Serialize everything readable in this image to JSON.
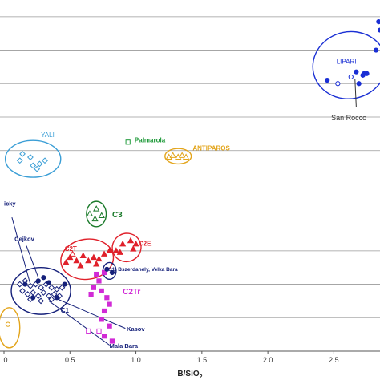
{
  "chart_data": {
    "type": "scatter",
    "title": "",
    "xlabel": "B/SiO",
    "xlabel_sub": "2",
    "ylabel": "",
    "xlim": [
      0,
      2.85
    ],
    "ylim": [
      0,
      1.05
    ],
    "grid": "horizontal",
    "x_ticks": [
      {
        "value": 0,
        "label": "0"
      },
      {
        "value": 0.5,
        "label": "0.5"
      },
      {
        "value": 1.0,
        "label": "1.0"
      },
      {
        "value": 1.5,
        "label": "1.5"
      },
      {
        "value": 2.0,
        "label": "2.0"
      },
      {
        "value": 2.5,
        "label": "2.5"
      }
    ],
    "y_grid": [
      0.1,
      0.2,
      0.3,
      0.5,
      0.6,
      0.7,
      0.8,
      0.9,
      1.0
    ],
    "groups": [
      {
        "label": "LIPARI",
        "color": "#1a2fd4",
        "label_at": [
          2.52,
          0.86
        ],
        "ellipse": {
          "cx": 2.62,
          "cy": 0.855,
          "rx": 0.28,
          "ry": 0.1,
          "rotate": -12
        },
        "points": [
          {
            "x": 2.84,
            "y": 0.985,
            "m": "circle",
            "f": true
          },
          {
            "x": 2.85,
            "y": 0.96,
            "m": "circle",
            "f": true
          },
          {
            "x": 2.82,
            "y": 0.9,
            "m": "circle",
            "f": true
          },
          {
            "x": 2.73,
            "y": 0.83,
            "m": "circle",
            "f": true
          },
          {
            "x": 2.75,
            "y": 0.83,
            "m": "circle",
            "f": true
          },
          {
            "x": 2.67,
            "y": 0.835,
            "m": "circle",
            "f": true
          },
          {
            "x": 2.69,
            "y": 0.8,
            "m": "circle",
            "f": true
          },
          {
            "x": 2.63,
            "y": 0.82,
            "m": "circle",
            "f": false
          },
          {
            "x": 2.53,
            "y": 0.8,
            "m": "circle",
            "f": false
          },
          {
            "x": 2.45,
            "y": 0.81,
            "m": "circle",
            "f": true
          },
          {
            "x": 2.72,
            "y": 0.825,
            "m": "circle",
            "f": true
          }
        ]
      },
      {
        "label": "YALI",
        "color": "#3a9ed6",
        "label_at": [
          0.28,
          0.64
        ],
        "ellipse": {
          "cx": 0.22,
          "cy": 0.575,
          "rx": 0.21,
          "ry": 0.055,
          "rotate": 0
        },
        "points": [
          {
            "x": 0.14,
            "y": 0.59,
            "m": "diamond",
            "f": false
          },
          {
            "x": 0.2,
            "y": 0.58,
            "m": "diamond",
            "f": false
          },
          {
            "x": 0.22,
            "y": 0.555,
            "m": "diamond",
            "f": false
          },
          {
            "x": 0.27,
            "y": 0.56,
            "m": "diamond",
            "f": false
          },
          {
            "x": 0.31,
            "y": 0.57,
            "m": "diamond",
            "f": false
          },
          {
            "x": 0.12,
            "y": 0.57,
            "m": "diamond",
            "f": false
          },
          {
            "x": 0.25,
            "y": 0.545,
            "m": "diamond",
            "f": false
          }
        ]
      },
      {
        "label": "Palmarola",
        "color": "#1f9a3a",
        "label_at": [
          0.99,
          0.625
        ],
        "points": [
          {
            "x": 0.94,
            "y": 0.625,
            "m": "square",
            "f": false
          }
        ]
      },
      {
        "label": "ANTIPAROS",
        "color": "#e3a51c",
        "label_at": [
          1.43,
          0.6
        ],
        "ellipse": {
          "cx": 1.32,
          "cy": 0.583,
          "rx": 0.1,
          "ry": 0.023,
          "rotate": 0
        },
        "points": [
          {
            "x": 1.25,
            "y": 0.58,
            "m": "triangle",
            "f": false
          },
          {
            "x": 1.28,
            "y": 0.585,
            "m": "triangle",
            "f": false
          },
          {
            "x": 1.32,
            "y": 0.58,
            "m": "triangle",
            "f": false
          },
          {
            "x": 1.35,
            "y": 0.585,
            "m": "triangle",
            "f": false
          },
          {
            "x": 1.38,
            "y": 0.58,
            "m": "triangle",
            "f": false
          }
        ]
      },
      {
        "label": "C3",
        "color": "#1a7a2a",
        "label_at": [
          0.82,
          0.4
        ],
        "ellipse": {
          "cx": 0.7,
          "cy": 0.41,
          "rx": 0.075,
          "ry": 0.038,
          "rotate": 0
        },
        "points": [
          {
            "x": 0.65,
            "y": 0.41,
            "m": "triangle",
            "f": false
          },
          {
            "x": 0.7,
            "y": 0.425,
            "m": "triangle",
            "f": false
          },
          {
            "x": 0.74,
            "y": 0.405,
            "m": "triangle",
            "f": false
          },
          {
            "x": 0.69,
            "y": 0.395,
            "m": "triangle",
            "f": false
          }
        ]
      },
      {
        "label": "C2E",
        "color": "#e0202a",
        "label_at": [
          1.02,
          0.315
        ],
        "ellipse": {
          "cx": 0.93,
          "cy": 0.31,
          "rx": 0.11,
          "ry": 0.042,
          "rotate": -28
        },
        "points": [
          {
            "x": 0.85,
            "y": 0.3,
            "m": "triangle",
            "f": true
          },
          {
            "x": 0.9,
            "y": 0.32,
            "m": "triangle",
            "f": true
          },
          {
            "x": 0.96,
            "y": 0.33,
            "m": "triangle",
            "f": true
          },
          {
            "x": 1.0,
            "y": 0.32,
            "m": "triangle",
            "f": true
          },
          {
            "x": 0.88,
            "y": 0.295,
            "m": "triangle",
            "f": true
          },
          {
            "x": 0.98,
            "y": 0.305,
            "m": "triangle",
            "f": true
          }
        ]
      },
      {
        "label": "C2T",
        "color": "#e0202a",
        "label_at": [
          0.46,
          0.3
        ],
        "ellipse": {
          "cx": 0.63,
          "cy": 0.275,
          "rx": 0.2,
          "ry": 0.06,
          "rotate": -8
        },
        "points": [
          {
            "x": 0.5,
            "y": 0.28,
            "m": "triangle",
            "f": true
          },
          {
            "x": 0.55,
            "y": 0.27,
            "m": "triangle",
            "f": true
          },
          {
            "x": 0.6,
            "y": 0.285,
            "m": "triangle",
            "f": true
          },
          {
            "x": 0.64,
            "y": 0.27,
            "m": "triangle",
            "f": true
          },
          {
            "x": 0.68,
            "y": 0.28,
            "m": "triangle",
            "f": true
          },
          {
            "x": 0.72,
            "y": 0.275,
            "m": "triangle",
            "f": true
          },
          {
            "x": 0.76,
            "y": 0.29,
            "m": "triangle",
            "f": true
          },
          {
            "x": 0.58,
            "y": 0.255,
            "m": "triangle",
            "f": true
          },
          {
            "x": 0.7,
            "y": 0.26,
            "m": "triangle",
            "f": true
          },
          {
            "x": 0.47,
            "y": 0.265,
            "m": "triangle",
            "f": true
          },
          {
            "x": 0.8,
            "y": 0.3,
            "m": "triangle",
            "f": true
          },
          {
            "x": 0.52,
            "y": 0.29,
            "m": "triangle",
            "f": false
          }
        ]
      },
      {
        "label": "C2Tr",
        "color": "#d12ad6",
        "label_at": [
          0.9,
          0.17
        ],
        "points": [
          {
            "x": 0.7,
            "y": 0.23,
            "m": "square",
            "f": true
          },
          {
            "x": 0.76,
            "y": 0.235,
            "m": "square",
            "f": true
          },
          {
            "x": 0.72,
            "y": 0.21,
            "m": "square",
            "f": true
          },
          {
            "x": 0.68,
            "y": 0.19,
            "m": "square",
            "f": true
          },
          {
            "x": 0.74,
            "y": 0.18,
            "m": "square",
            "f": true
          },
          {
            "x": 0.78,
            "y": 0.16,
            "m": "square",
            "f": true
          },
          {
            "x": 0.8,
            "y": 0.14,
            "m": "square",
            "f": true
          },
          {
            "x": 0.76,
            "y": 0.12,
            "m": "square",
            "f": true
          },
          {
            "x": 0.74,
            "y": 0.095,
            "m": "square",
            "f": true
          },
          {
            "x": 0.8,
            "y": 0.075,
            "m": "square",
            "f": true
          },
          {
            "x": 0.76,
            "y": 0.045,
            "m": "square",
            "f": true
          },
          {
            "x": 0.82,
            "y": 0.03,
            "m": "square",
            "f": true
          },
          {
            "x": 0.66,
            "y": 0.17,
            "m": "square",
            "f": true
          },
          {
            "x": 0.64,
            "y": 0.06,
            "m": "square",
            "f": false
          },
          {
            "x": 0.72,
            "y": 0.06,
            "m": "square",
            "f": false
          }
        ]
      },
      {
        "label": "C1: Bszerdahely, Velka Bara",
        "color": "#15207a",
        "label_at": [
          0.79,
          0.24
        ],
        "ellipse": {
          "cx": 0.8,
          "cy": 0.24,
          "rx": 0.05,
          "ry": 0.025,
          "rotate": 0
        },
        "points": [
          {
            "x": 0.78,
            "y": 0.245,
            "m": "circle",
            "f": true
          },
          {
            "x": 0.82,
            "y": 0.235,
            "m": "circle",
            "f": true
          }
        ]
      },
      {
        "label": "C1",
        "color": "#15207a",
        "label_at": [
          0.43,
          0.115
        ],
        "ellipse": {
          "cx": 0.28,
          "cy": 0.18,
          "rx": 0.225,
          "ry": 0.07,
          "rotate": 0
        },
        "points": [
          {
            "x": 0.12,
            "y": 0.2,
            "m": "diamond",
            "f": false
          },
          {
            "x": 0.16,
            "y": 0.21,
            "m": "diamond",
            "f": false
          },
          {
            "x": 0.2,
            "y": 0.195,
            "m": "diamond",
            "f": false
          },
          {
            "x": 0.24,
            "y": 0.2,
            "m": "diamond",
            "f": false
          },
          {
            "x": 0.28,
            "y": 0.19,
            "m": "diamond",
            "f": false
          },
          {
            "x": 0.32,
            "y": 0.2,
            "m": "diamond",
            "f": false
          },
          {
            "x": 0.36,
            "y": 0.19,
            "m": "diamond",
            "f": false
          },
          {
            "x": 0.4,
            "y": 0.185,
            "m": "diamond",
            "f": false
          },
          {
            "x": 0.14,
            "y": 0.18,
            "m": "diamond",
            "f": false
          },
          {
            "x": 0.18,
            "y": 0.17,
            "m": "diamond",
            "f": false
          },
          {
            "x": 0.22,
            "y": 0.175,
            "m": "diamond",
            "f": false
          },
          {
            "x": 0.26,
            "y": 0.165,
            "m": "diamond",
            "f": false
          },
          {
            "x": 0.3,
            "y": 0.175,
            "m": "diamond",
            "f": false
          },
          {
            "x": 0.34,
            "y": 0.165,
            "m": "diamond",
            "f": false
          },
          {
            "x": 0.38,
            "y": 0.17,
            "m": "diamond",
            "f": false
          },
          {
            "x": 0.44,
            "y": 0.19,
            "m": "diamond",
            "f": false
          },
          {
            "x": 0.2,
            "y": 0.155,
            "m": "diamond",
            "f": false
          },
          {
            "x": 0.28,
            "y": 0.15,
            "m": "diamond",
            "f": false
          },
          {
            "x": 0.36,
            "y": 0.155,
            "m": "diamond",
            "f": false
          },
          {
            "x": 0.42,
            "y": 0.165,
            "m": "diamond",
            "f": false
          },
          {
            "x": 0.16,
            "y": 0.2,
            "m": "circle",
            "f": true
          },
          {
            "x": 0.26,
            "y": 0.21,
            "m": "circle",
            "f": true
          },
          {
            "x": 0.34,
            "y": 0.205,
            "m": "circle",
            "f": true
          },
          {
            "x": 0.46,
            "y": 0.2,
            "m": "circle",
            "f": true
          },
          {
            "x": 0.22,
            "y": 0.16,
            "m": "circle",
            "f": true
          },
          {
            "x": 0.4,
            "y": 0.16,
            "m": "circle",
            "f": true
          },
          {
            "x": 0.3,
            "y": 0.22,
            "m": "circle",
            "f": true
          }
        ]
      },
      {
        "label": "",
        "color": "#e3a51c",
        "ellipse": {
          "cx": 0.04,
          "cy": 0.07,
          "rx": 0.08,
          "ry": 0.06,
          "rotate": 0
        },
        "points": [
          {
            "x": 0.03,
            "y": 0.08,
            "m": "circle",
            "f": false
          }
        ]
      }
    ],
    "annotations": [
      {
        "text": "San Rocco",
        "color": "#333333",
        "at": [
          2.48,
          0.69
        ],
        "from": [
          2.67,
          0.73
        ],
        "to": [
          2.66,
          0.815
        ]
      },
      {
        "text": "icky",
        "color": "#15207a",
        "at": [
          0.0,
          0.435
        ]
      },
      {
        "text": "Cejkov",
        "color": "#15207a",
        "at": [
          0.08,
          0.33
        ],
        "from": [
          0.17,
          0.315
        ],
        "to": [
          0.26,
          0.22
        ]
      },
      {
        "text": "Kasov",
        "color": "#15207a",
        "at": [
          0.93,
          0.06
        ],
        "from": [
          0.92,
          0.068
        ],
        "to": [
          0.38,
          0.16
        ]
      },
      {
        "text": "Mala Bara",
        "color": "#15207a",
        "at": [
          0.8,
          0.01
        ],
        "from": [
          0.8,
          0.018
        ],
        "to": [
          0.34,
          0.15
        ]
      },
      {
        "text": "",
        "color": "#15207a",
        "from": [
          0.06,
          0.4
        ],
        "to": [
          0.2,
          0.2
        ]
      }
    ]
  }
}
